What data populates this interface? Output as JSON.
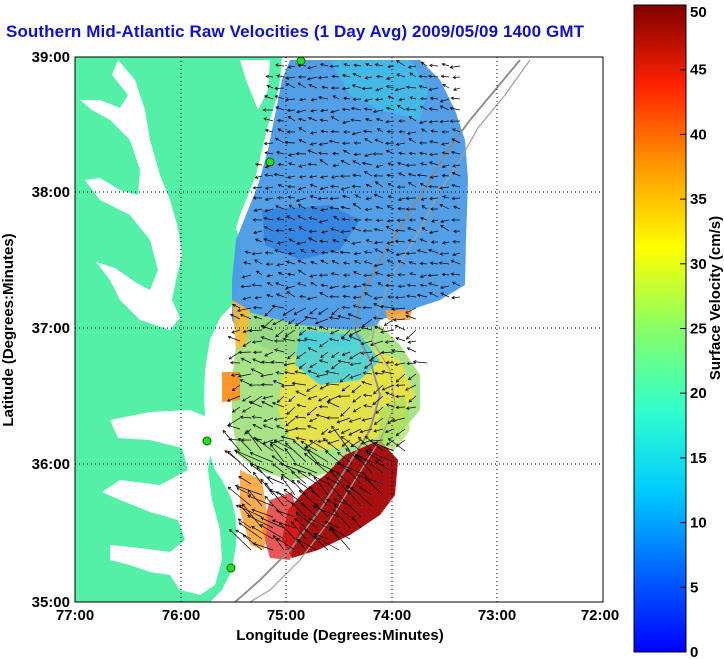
{
  "title": "Southern Mid-Atlantic Raw Velocities (1 Day Avg) 2009/05/09 1400 GMT",
  "xlabel": "Longitude (Degrees:Minutes)",
  "ylabel": "Latitude (Degrees:Minutes)",
  "x_ticks": [
    "77:00",
    "76:00",
    "75:00",
    "74:00",
    "73:00",
    "72:00"
  ],
  "y_ticks": [
    "39:00",
    "38:00",
    "37:00",
    "36:00",
    "35:00"
  ],
  "colorbar": {
    "label": "Surface Velocity (cm/s)",
    "ticks": [
      "50",
      "45",
      "40",
      "35",
      "30",
      "25",
      "20",
      "15",
      "10",
      "5",
      "0"
    ],
    "range": [
      0,
      50
    ]
  },
  "colors": {
    "land": "#55f0a8",
    "water": "#ffffff",
    "title": "#1010c8",
    "station": "#22dd22"
  }
}
